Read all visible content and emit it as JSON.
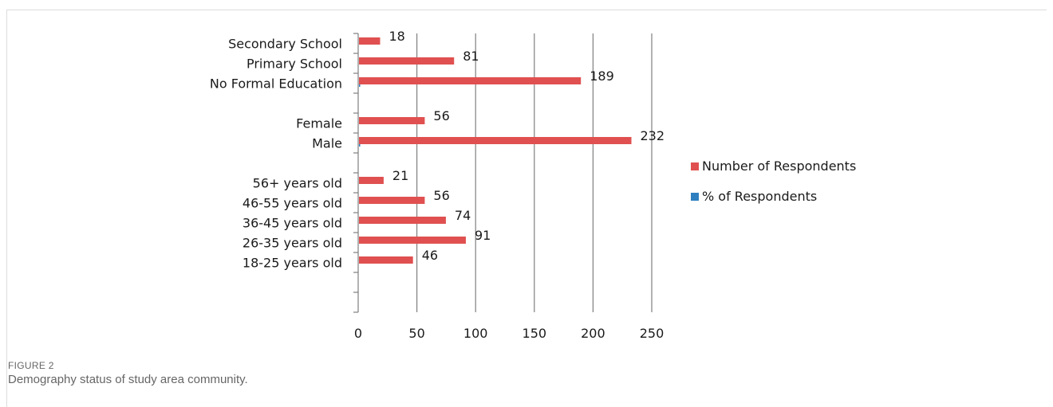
{
  "figure": {
    "label": "FIGURE 2",
    "caption": "Demography status of study area community."
  },
  "colors": {
    "number": "#e05050",
    "percent": "#2e7fc0",
    "grid": "#7f7f7f",
    "axis": "#7f7f7f"
  },
  "chart_data": {
    "type": "bar",
    "orientation": "horizontal",
    "title": "",
    "xlabel": "",
    "ylabel": "",
    "xlim": [
      0,
      250
    ],
    "xticks": [
      "0",
      "50",
      "100",
      "150",
      "200",
      "250"
    ],
    "categories": [
      "Secondary School",
      "Primary School",
      "No Formal Education",
      "",
      "Female",
      "Male",
      "",
      "56+ years old",
      "46-55 years old",
      "36-45 years old",
      "26-35 years old",
      "18-25 years old",
      "",
      ""
    ],
    "series": [
      {
        "name": "Number of Respondents",
        "values": [
          18,
          81,
          189,
          null,
          56,
          232,
          null,
          21,
          56,
          74,
          91,
          46,
          null,
          null
        ],
        "labels": [
          "18",
          "81",
          "189",
          "",
          "56",
          "232",
          "",
          "21",
          "56",
          "74",
          "91",
          "46",
          "",
          ""
        ]
      },
      {
        "name": "% of Respondents",
        "values": [
          null,
          null,
          0.66,
          null,
          null,
          0.81,
          null,
          null,
          null,
          null,
          null,
          null,
          null,
          null
        ],
        "labels": [
          "",
          "",
          "",
          "",
          "",
          "",
          "",
          "",
          "",
          "",
          "",
          "",
          "",
          ""
        ]
      }
    ],
    "grid": true,
    "legend": "right"
  }
}
